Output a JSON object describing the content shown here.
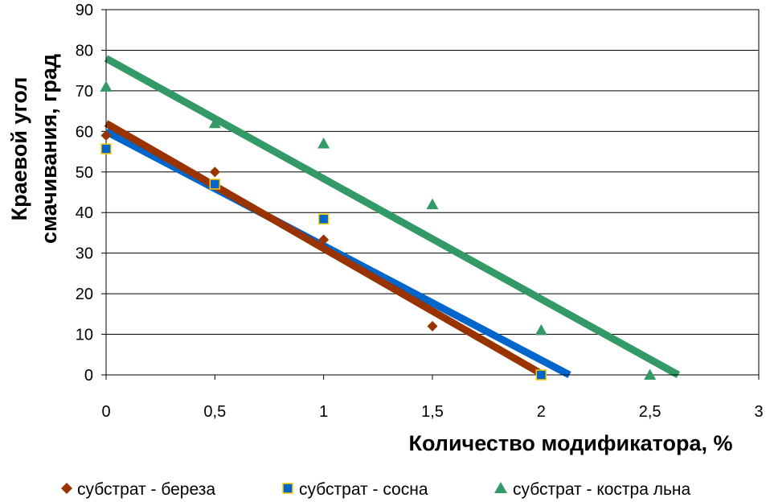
{
  "chart_data": {
    "type": "scatter",
    "title": "",
    "xlabel": "Количество модификатора, %",
    "ylabel_lines": [
      "Краевой угол",
      "смачивания, град"
    ],
    "xlim": [
      0,
      3
    ],
    "ylim": [
      0,
      90
    ],
    "x_ticks": [
      0,
      0.5,
      1,
      1.5,
      2,
      2.5,
      3
    ],
    "x_tick_labels": [
      "0",
      "0,5",
      "1",
      "1,5",
      "2",
      "2,5",
      "3"
    ],
    "y_ticks": [
      0,
      10,
      20,
      30,
      40,
      50,
      60,
      70,
      80,
      90
    ],
    "y_tick_labels": [
      "0",
      "10",
      "20",
      "30",
      "40",
      "50",
      "60",
      "70",
      "80",
      "90"
    ],
    "grid": "horizontal",
    "legend_position": "bottom",
    "series": [
      {
        "name": "субстрат - береза",
        "marker": "diamond",
        "color": "#993300",
        "x": [
          0,
          0.5,
          1,
          1.5,
          2
        ],
        "y": [
          59,
          50,
          33.3,
          12,
          0
        ],
        "trendline": [
          [
            0,
            62
          ],
          [
            2.01,
            0
          ]
        ]
      },
      {
        "name": "субстрат - сосна",
        "marker": "square",
        "color": "#0066CC",
        "x": [
          0,
          0.5,
          1,
          2
        ],
        "y": [
          55.7,
          47,
          38.4,
          0
        ],
        "trendline": [
          [
            0,
            60
          ],
          [
            2.13,
            0
          ]
        ]
      },
      {
        "name": "субстрат - костра льна",
        "marker": "triangle",
        "color": "#339966",
        "x": [
          0,
          0.5,
          1,
          1.5,
          2,
          2.5
        ],
        "y": [
          71,
          62,
          57,
          42,
          11,
          0
        ],
        "trendline": [
          [
            0,
            78
          ],
          [
            2.63,
            0
          ]
        ]
      }
    ]
  }
}
